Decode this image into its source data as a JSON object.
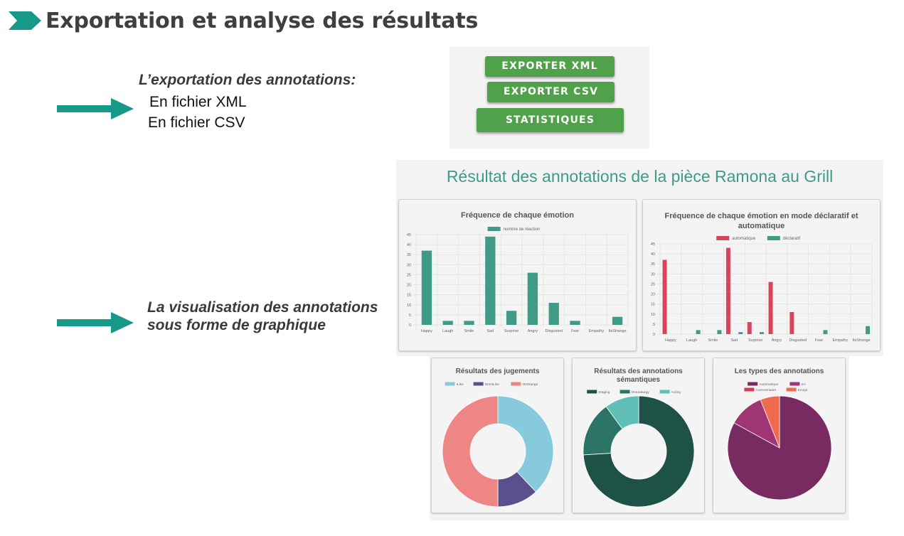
{
  "slide": {
    "title": "Exportation et analyse des résultats"
  },
  "export_section": {
    "heading": "L’exportation des annotations:",
    "lines": [
      "En fichier XML",
      "En fichier CSV"
    ]
  },
  "viz_section": {
    "lines": [
      "La visualisation des annotations",
      "sous forme de graphique"
    ]
  },
  "buttons": {
    "xml": "EXPORTER XML",
    "csv": "EXPORTER CSV",
    "stats": "STATISTIQUES"
  },
  "results": {
    "title": "Résultat des annotations de la pièce Ramona au Grill"
  },
  "colors": {
    "accent_teal": "#17998a",
    "button_green": "#4fa24a",
    "bar_teal": "#3f9a86",
    "bar_red": "#d9435b"
  },
  "chart_data": [
    {
      "type": "bar",
      "title": "Fréquence de chaque émotion",
      "categories": [
        "Happy",
        "Laugh",
        "Smile",
        "Sad",
        "Surprise",
        "Angry",
        "Disgusted",
        "Fear",
        "Empathy",
        "ItsStrange"
      ],
      "series": [
        {
          "name": "nombre de réaction",
          "values": [
            37,
            2,
            2,
            44,
            7,
            26,
            11,
            2,
            0,
            4
          ],
          "color": "#3f9a86"
        }
      ],
      "yticks": [
        0,
        5,
        10,
        15,
        20,
        25,
        30,
        35,
        40,
        45
      ],
      "ylim": [
        0,
        45
      ],
      "grid": true,
      "legend": "top"
    },
    {
      "type": "bar",
      "title": [
        "Fréquence de chaque émotion en mode déclaratif et",
        "automatique"
      ],
      "categories": [
        "Happy",
        "Laugh",
        "Smile",
        "Sad",
        "Surprise",
        "Angry",
        "Disgusted",
        "Fear",
        "Empathy",
        "ItsStrange"
      ],
      "series": [
        {
          "name": "automatique",
          "values": [
            37,
            0,
            0,
            43,
            6,
            26,
            11,
            0,
            0,
            0
          ],
          "color": "#d9435b"
        },
        {
          "name": "déclaratif",
          "values": [
            0,
            2,
            2,
            1,
            1,
            0,
            0,
            2,
            0,
            4
          ],
          "color": "#3f9a86"
        }
      ],
      "yticks": [
        0,
        5,
        10,
        15,
        20,
        25,
        30,
        35,
        40,
        45
      ],
      "ylim": [
        0,
        45
      ],
      "grid": true,
      "legend": "top"
    },
    {
      "type": "pie",
      "donut": true,
      "title": "Résultats des jugements",
      "labels": [
        "ILike",
        "IDontLike",
        "ItsStrange"
      ],
      "values": [
        38,
        12,
        50
      ],
      "colors": [
        "#86cadb",
        "#5b4f8e",
        "#ef8686"
      ],
      "legend": "top"
    },
    {
      "type": "pie",
      "donut": true,
      "title": [
        "Résultats des annotations",
        "sémantiques"
      ],
      "labels": [
        "Staging",
        "Dramaturgy",
        "Acting"
      ],
      "values": [
        74,
        16,
        10
      ],
      "colors": [
        "#1e5247",
        "#2c7566",
        "#5fbfb6"
      ],
      "legend": "top"
    },
    {
      "type": "pie",
      "donut": false,
      "title": "Les types des annotations",
      "labels": [
        "Automatique",
        "SA",
        "Commentaire",
        "Emoja"
      ],
      "values": [
        83,
        11,
        0,
        6
      ],
      "colors": [
        "#772b61",
        "#a03575",
        "#d23d56",
        "#ee6b4d"
      ],
      "legend": "top"
    }
  ]
}
